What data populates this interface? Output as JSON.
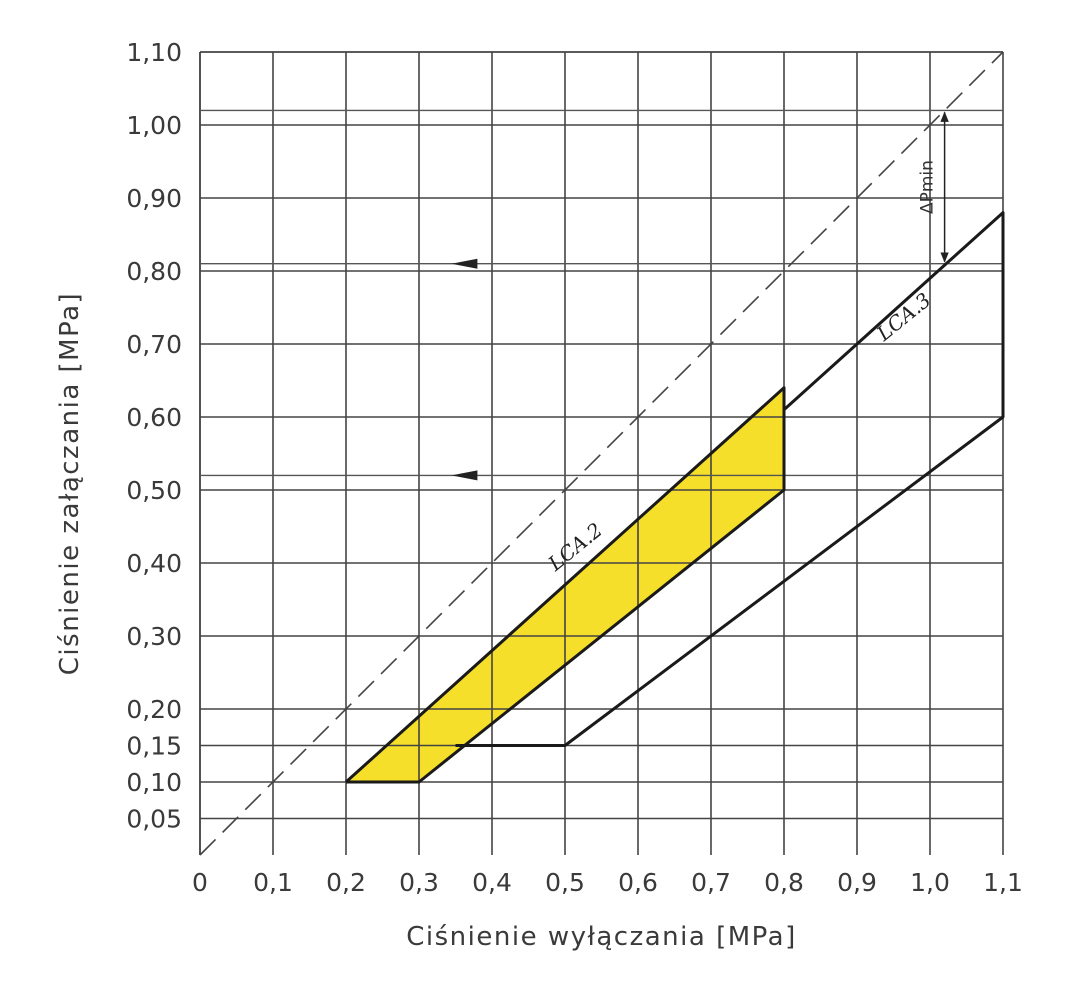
{
  "chart_data": {
    "type": "area",
    "xlabel": "Ciśnienie wyłączania [MPa]",
    "ylabel": "Ciśnienie załączania [MPa]",
    "xlim": [
      0,
      1.1
    ],
    "ylim": [
      0,
      1.1
    ],
    "grid": true,
    "x_ticks": [
      {
        "value": 0,
        "label": "0"
      },
      {
        "value": 0.1,
        "label": "0,1"
      },
      {
        "value": 0.2,
        "label": "0,2"
      },
      {
        "value": 0.3,
        "label": "0,3"
      },
      {
        "value": 0.4,
        "label": "0,4"
      },
      {
        "value": 0.5,
        "label": "0,5"
      },
      {
        "value": 0.6,
        "label": "0,6"
      },
      {
        "value": 0.7,
        "label": "0,7"
      },
      {
        "value": 0.8,
        "label": "0,8"
      },
      {
        "value": 0.9,
        "label": "0,9"
      },
      {
        "value": 1.0,
        "label": "1,0"
      },
      {
        "value": 1.1,
        "label": "1,1"
      }
    ],
    "y_ticks": [
      {
        "value": 0.05,
        "label": "0,05"
      },
      {
        "value": 0.1,
        "label": "0,10"
      },
      {
        "value": 0.15,
        "label": "0,15"
      },
      {
        "value": 0.2,
        "label": "0,20"
      },
      {
        "value": 0.3,
        "label": "0,30"
      },
      {
        "value": 0.4,
        "label": "0,40"
      },
      {
        "value": 0.5,
        "label": "0,50"
      },
      {
        "value": 0.6,
        "label": "0,60"
      },
      {
        "value": 0.7,
        "label": "0,70"
      },
      {
        "value": 0.8,
        "label": "0,80"
      },
      {
        "value": 0.9,
        "label": "0,90"
      },
      {
        "value": 1.0,
        "label": "1,00"
      },
      {
        "value": 1.1,
        "label": "1,10"
      }
    ],
    "reference_line": {
      "style": "dashed",
      "points": [
        [
          0,
          0
        ],
        [
          1.1,
          1.1
        ]
      ]
    },
    "regions": [
      {
        "label": "LCA.2",
        "fill": "#f5df2a",
        "label_at": [
          0.52,
          0.415
        ],
        "polygon": [
          [
            0.2,
            0.1
          ],
          [
            0.3,
            0.1
          ],
          [
            0.8,
            0.5
          ],
          [
            0.8,
            0.64
          ],
          [
            0.2,
            0.1
          ]
        ]
      },
      {
        "label": "LCA.3",
        "fill": "none",
        "label_at": [
          0.97,
          0.73
        ],
        "polygon": [
          [
            0.35,
            0.15
          ],
          [
            0.5,
            0.15
          ],
          [
            1.1,
            0.6
          ],
          [
            1.1,
            0.88
          ],
          [
            0.8,
            0.61
          ]
        ]
      }
    ],
    "extra_lines": [
      {
        "y": 1.02
      },
      {
        "y": 0.81
      },
      {
        "y": 0.52
      }
    ],
    "arrows": [
      {
        "x": 0.38,
        "y": 0.81,
        "direction": "left"
      },
      {
        "x": 0.38,
        "y": 0.52,
        "direction": "left"
      }
    ],
    "annotation": {
      "text": "ΔPmin",
      "x": 1.02,
      "y_from": 1.02,
      "y_to": 0.81
    }
  }
}
